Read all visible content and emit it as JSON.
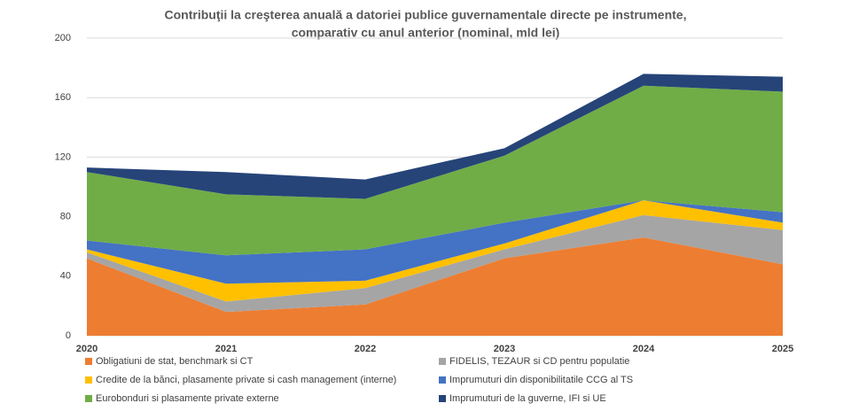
{
  "chart_data": {
    "type": "stacked_area",
    "title": [
      "Contribuţii la creşterea anuală a datoriei publice guvernamentale directe pe instrumente,",
      "comparativ cu anul anterior (nominal, mld lei)"
    ],
    "categories": [
      "2020",
      "2021",
      "2022",
      "2023",
      "2024",
      "2025"
    ],
    "series": [
      {
        "name": "Obligatiuni de stat, benchmark si CT",
        "color": "#ed7d31",
        "values": [
          52,
          16,
          21,
          52,
          66,
          48
        ]
      },
      {
        "name": "FIDELIS, TEZAUR si CD pentru populatie",
        "color": "#a5a5a5",
        "values": [
          4,
          7,
          11,
          6,
          15,
          23
        ]
      },
      {
        "name": "Credite de la bănci, plasamente private si cash management (interne)",
        "color": "#ffc000",
        "values": [
          2,
          12,
          5,
          4,
          10,
          5
        ]
      },
      {
        "name": "Imprumuturi din disponibilitatile CCG al TS",
        "color": "#4472c4",
        "values": [
          6,
          19,
          21,
          14,
          0,
          7
        ]
      },
      {
        "name": "Eurobonduri si plasamente private externe",
        "color": "#70ad47",
        "values": [
          46,
          41,
          34,
          45,
          77,
          81
        ]
      },
      {
        "name": "Imprumuturi de la guverne, IFI si UE",
        "color": "#264478",
        "values": [
          3,
          15,
          13,
          5,
          8,
          10
        ]
      }
    ],
    "ylim": [
      0,
      200
    ],
    "yticks": [
      0,
      40,
      80,
      120,
      160,
      200
    ],
    "grid": true,
    "legend": "bottom"
  }
}
